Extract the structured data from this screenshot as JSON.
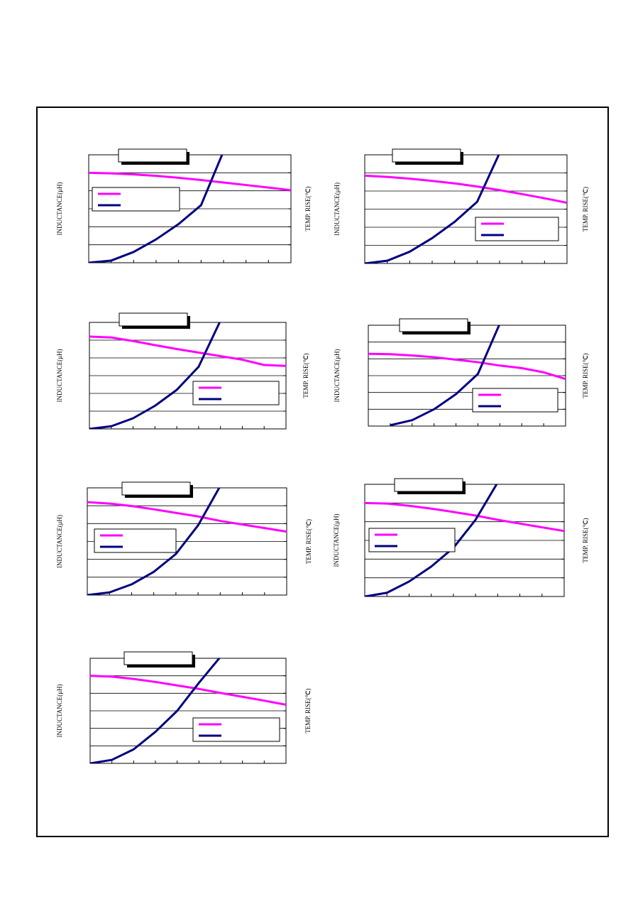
{
  "chart_data": [
    {
      "type": "line",
      "y_label": "INDUCTANCE(μH)",
      "y2_label": "TEMP. RISE(℃)",
      "x": [
        0,
        1,
        2,
        3,
        4,
        5,
        6,
        7,
        8,
        9
      ],
      "xlim": [
        0,
        9
      ],
      "ylim": [
        0,
        6
      ],
      "yticks": [
        0,
        1,
        2,
        3,
        4,
        5,
        6
      ],
      "y2lim": [
        0,
        6
      ],
      "y2ticks": [
        0,
        1,
        2,
        3,
        4,
        5,
        6
      ],
      "series": [
        {
          "color": "#ff00ff",
          "values": [
            5.0,
            4.97,
            4.91,
            4.83,
            4.72,
            4.6,
            4.46,
            4.32,
            4.18,
            4.03
          ]
        },
        {
          "color": "#000080",
          "axis": "y2",
          "values": [
            0,
            0.12,
            0.6,
            1.3,
            2.15,
            3.2,
            6.2,
            null,
            null,
            null
          ]
        }
      ]
    },
    {
      "type": "line",
      "y_label": "INDUCTANCE(μH)",
      "y2_label": "TEMP. RISE(℃)",
      "x": [
        0,
        1,
        2,
        3,
        4,
        5,
        6,
        7,
        8,
        9
      ],
      "xlim": [
        0,
        9
      ],
      "ylim": [
        0,
        6
      ],
      "yticks": [
        0,
        1,
        2,
        3,
        4,
        5,
        6
      ],
      "y2lim": [
        0,
        6
      ],
      "y2ticks": [
        0,
        1,
        2,
        3,
        4,
        5,
        6
      ],
      "series": [
        {
          "color": "#ff00ff",
          "values": [
            4.85,
            4.78,
            4.68,
            4.56,
            4.42,
            4.25,
            4.05,
            3.83,
            3.6,
            3.35
          ]
        },
        {
          "color": "#000080",
          "axis": "y2",
          "values": [
            0,
            0.15,
            0.65,
            1.4,
            2.3,
            3.4,
            6.1,
            null,
            null,
            null
          ]
        }
      ]
    },
    {
      "type": "line",
      "y_label": "INDUCTANCE(μH)",
      "y2_label": "TEMP. RISE(℃)",
      "x": [
        0,
        1,
        2,
        3,
        4,
        5,
        6,
        7,
        8,
        9
      ],
      "xlim": [
        0,
        9
      ],
      "ylim": [
        0,
        6
      ],
      "yticks": [
        0,
        1,
        2,
        3,
        4,
        5,
        6
      ],
      "y2lim": [
        0,
        6
      ],
      "y2ticks": [
        0,
        1,
        2,
        3,
        4,
        5,
        6
      ],
      "series": [
        {
          "color": "#ff00ff",
          "values": [
            5.2,
            5.15,
            4.95,
            4.72,
            4.5,
            4.3,
            4.1,
            3.9,
            3.6,
            3.55
          ]
        },
        {
          "color": "#000080",
          "axis": "y2",
          "values": [
            0,
            0.15,
            0.6,
            1.3,
            2.2,
            3.5,
            6.1,
            null,
            null,
            null
          ]
        }
      ]
    },
    {
      "type": "line",
      "y_label": "INDUCTANCE(μH)",
      "y2_label": "TEMP. RISE(℃)",
      "x": [
        0,
        1,
        2,
        3,
        4,
        5,
        6,
        7,
        8,
        9
      ],
      "xlim": [
        0,
        9
      ],
      "ylim": [
        0,
        6
      ],
      "yticks": [
        0,
        1,
        2,
        3,
        4,
        5,
        6
      ],
      "y2lim": [
        0,
        6
      ],
      "y2ticks": [
        0,
        1,
        2,
        3,
        4,
        5,
        6
      ],
      "series": [
        {
          "color": "#ff00ff",
          "values": [
            4.3,
            4.28,
            4.2,
            4.1,
            3.95,
            3.8,
            3.6,
            3.45,
            3.2,
            2.8
          ]
        },
        {
          "color": "#000080",
          "axis": "y2",
          "values": [
            null,
            0.05,
            0.35,
            1.0,
            1.9,
            3.1,
            6.1,
            null,
            null,
            null
          ]
        }
      ]
    },
    {
      "type": "line",
      "y_label": "INDUCTANCE(μH)",
      "y2_label": "TEMP. RISE(℃)",
      "x": [
        0,
        1,
        2,
        3,
        4,
        5,
        6,
        7,
        8,
        9
      ],
      "xlim": [
        0,
        9
      ],
      "ylim": [
        0,
        6
      ],
      "yticks": [
        0,
        1,
        2,
        3,
        4,
        5,
        6
      ],
      "y2lim": [
        0,
        6
      ],
      "y2ticks": [
        0,
        1,
        2,
        3,
        4,
        5,
        6
      ],
      "series": [
        {
          "color": "#ff00ff",
          "values": [
            5.2,
            5.12,
            4.98,
            4.8,
            4.6,
            4.4,
            4.15,
            3.95,
            3.75,
            3.55
          ]
        },
        {
          "color": "#000080",
          "axis": "y2",
          "values": [
            0,
            0.15,
            0.6,
            1.3,
            2.3,
            3.9,
            6.1,
            null,
            null,
            null
          ]
        }
      ]
    },
    {
      "type": "line",
      "y_label": "INDUCTANCE(μH)",
      "y2_label": "TEMP. RISE(℃)",
      "x": [
        0,
        1,
        2,
        3,
        4,
        5,
        6,
        7,
        8,
        9
      ],
      "xlim": [
        0,
        9
      ],
      "ylim": [
        0,
        6
      ],
      "yticks": [
        0,
        1,
        2,
        3,
        4,
        5,
        6
      ],
      "y2lim": [
        0,
        6
      ],
      "y2ticks": [
        0,
        1,
        2,
        3,
        4,
        5,
        6
      ],
      "series": [
        {
          "color": "#ff00ff",
          "values": [
            5.0,
            4.97,
            4.85,
            4.7,
            4.52,
            4.33,
            4.1,
            3.9,
            3.7,
            3.5
          ]
        },
        {
          "color": "#000080",
          "axis": "y2",
          "values": [
            0,
            0.2,
            0.8,
            1.6,
            2.6,
            4.1,
            6.1,
            null,
            null,
            null
          ]
        }
      ]
    },
    {
      "type": "line",
      "y_label": "INDUCTANCE(μH)",
      "y2_label": "TEMP. RISE(℃)",
      "x": [
        0,
        1,
        2,
        3,
        4,
        5,
        6,
        7,
        8,
        9
      ],
      "xlim": [
        0,
        9
      ],
      "ylim": [
        0,
        6
      ],
      "yticks": [
        0,
        1,
        2,
        3,
        4,
        5,
        6
      ],
      "y2lim": [
        0,
        6
      ],
      "y2ticks": [
        0,
        1,
        2,
        3,
        4,
        5,
        6
      ],
      "series": [
        {
          "color": "#ff00ff",
          "values": [
            5.0,
            4.95,
            4.82,
            4.65,
            4.45,
            4.25,
            4.02,
            3.8,
            3.58,
            3.35
          ]
        },
        {
          "color": "#000080",
          "axis": "y2",
          "values": [
            0,
            0.2,
            0.8,
            1.8,
            3.0,
            4.6,
            6.1,
            null,
            null,
            null
          ]
        }
      ]
    }
  ]
}
